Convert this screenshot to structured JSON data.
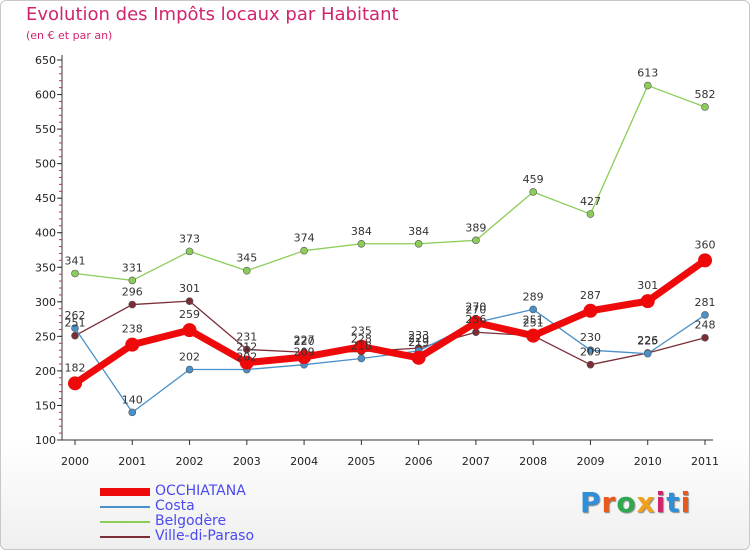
{
  "header": {
    "title": "Evolution des Impôts locaux par Habitant",
    "subtitle": "(en € et par an)"
  },
  "logo": {
    "text": "Proxiti",
    "colors": [
      "#2f8fd8",
      "#e85a1c",
      "#2fa84f",
      "#f0a01c",
      "#d0246e",
      "#2f8fd8",
      "#e85a1c"
    ]
  },
  "chart_data": {
    "type": "line",
    "title": "Evolution des Impôts locaux par Habitant",
    "subtitle": "(en € et par an)",
    "xlabel": "",
    "ylabel": "",
    "categories": [
      "2000",
      "2001",
      "2002",
      "2003",
      "2004",
      "2005",
      "2006",
      "2007",
      "2008",
      "2009",
      "2010",
      "2011"
    ],
    "y_ticks": [
      100,
      150,
      200,
      250,
      300,
      350,
      400,
      450,
      500,
      550,
      600,
      650
    ],
    "ylim": [
      100,
      650
    ],
    "grid": false,
    "legend_position": "bottom-left",
    "series": [
      {
        "name": "OCCHIATANA",
        "color": "#ee0a0a",
        "width": 7,
        "dot": 7,
        "values": [
          182,
          238,
          259,
          212,
          220,
          235,
          219,
          270,
          251,
          287,
          301,
          360
        ],
        "labels": [
          "182",
          "238",
          "259",
          "212",
          "220",
          "235",
          "219",
          "270",
          "251",
          "287",
          "301",
          "360"
        ]
      },
      {
        "name": "Costa",
        "color": "#4a90c9",
        "width": 1.3,
        "dot": 3.5,
        "values": [
          262,
          140,
          202,
          202,
          209,
          218,
          229,
          270,
          289,
          230,
          225,
          281
        ],
        "labels": [
          "262",
          "140",
          "202",
          "202",
          "209",
          "218",
          "229",
          "270",
          "289",
          "230",
          "225",
          "281"
        ]
      },
      {
        "name": "Belgodère",
        "color": "#8ccd5a",
        "width": 1.3,
        "dot": 3.5,
        "values": [
          341,
          331,
          373,
          345,
          374,
          384,
          384,
          389,
          459,
          427,
          613,
          582
        ],
        "labels": [
          "341",
          "331",
          "373",
          "345",
          "374",
          "384",
          "384",
          "389",
          "459",
          "427",
          "613",
          "582"
        ]
      },
      {
        "name": "Ville-di-Paraso",
        "color": "#7a2e36",
        "width": 1.3,
        "dot": 3.5,
        "values": [
          251,
          296,
          301,
          231,
          227,
          228,
          233,
          256,
          251,
          209,
          226,
          248
        ],
        "labels": [
          "251",
          "296",
          "301",
          "231",
          "227",
          "228",
          "233",
          "256",
          "251",
          "209",
          "226",
          "248"
        ]
      }
    ]
  }
}
